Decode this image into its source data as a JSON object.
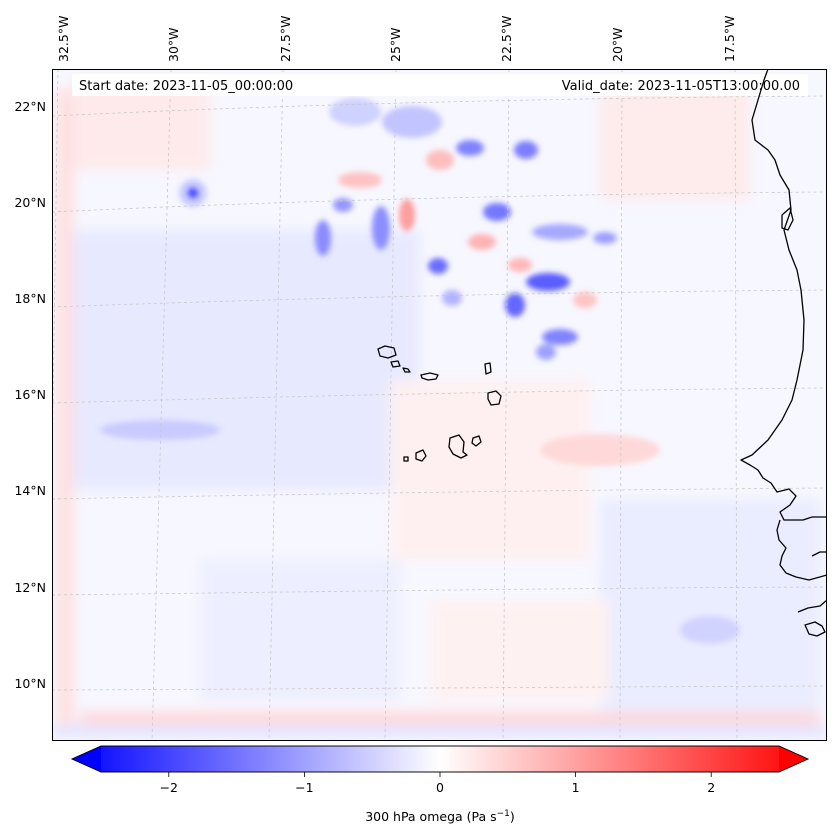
{
  "figure": {
    "start_date_label": "Start date: 2023-11-05_00:00:00",
    "valid_date_label": "Valid_date: 2023-11-05T13:00:00.00",
    "variable_label": "300 hPa omega (Pa s",
    "variable_unit_exp": "−1",
    "variable_label_end": ")"
  },
  "axes": {
    "lon_labels": [
      "32.5°W",
      "30°W",
      "27.5°W",
      "25°W",
      "22.5°W",
      "20°W",
      "17.5°W"
    ],
    "lat_labels": [
      "22°N",
      "20°N",
      "18°N",
      "16°N",
      "14°N",
      "12°N",
      "10°N"
    ]
  },
  "colorbar": {
    "tick_labels": [
      "−2",
      "−1",
      "0",
      "1",
      "2"
    ],
    "tick_values": [
      -2,
      -1,
      0,
      1,
      2
    ],
    "range": [
      -2.5,
      2.5
    ],
    "extend": "both",
    "cmap": "bwr",
    "low_color": "#0000ff",
    "mid_color": "#ffffff",
    "high_color": "#ff0000"
  },
  "map": {
    "region": "Cape Verde / West Africa coast",
    "coastline_color": "#000000",
    "gridline_color": "#bdbdbd"
  }
}
